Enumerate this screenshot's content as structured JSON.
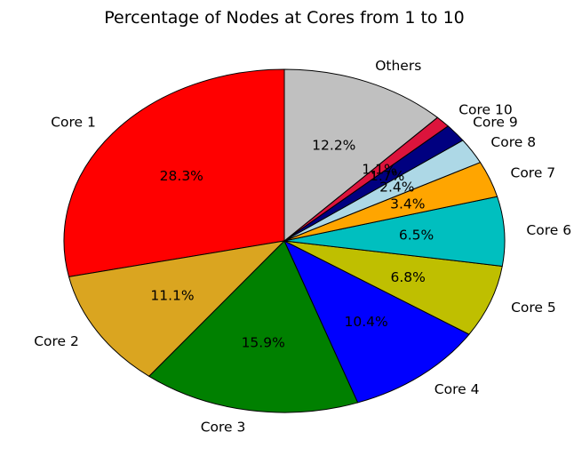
{
  "chart_data": {
    "type": "pie",
    "title": "Percentage of Nodes at Cores from 1 to 10",
    "categories": [
      "Core 1",
      "Core 2",
      "Core 3",
      "Core 4",
      "Core 5",
      "Core 6",
      "Core 7",
      "Core 8",
      "Core 9",
      "Core 10",
      "Others"
    ],
    "values": [
      28.3,
      11.1,
      15.9,
      10.4,
      6.8,
      6.5,
      3.4,
      2.4,
      1.7,
      1.1,
      12.2
    ],
    "value_labels": [
      "28.3%",
      "11.1%",
      "15.9%",
      "10.4%",
      "6.8%",
      "6.5%",
      "3.4%",
      "2.4%",
      "1.7%",
      "1.1%",
      "12.2%"
    ],
    "colors": [
      "#ff0000",
      "#daa520",
      "#008000",
      "#0000ff",
      "#bfbf00",
      "#00bfbf",
      "#ffa500",
      "#add8e6",
      "#000080",
      "#dc143c",
      "#c0c0c0"
    ],
    "start_angle_deg": 90,
    "direction": "counterclockwise",
    "edge_color": "#000000",
    "legend": "none"
  }
}
